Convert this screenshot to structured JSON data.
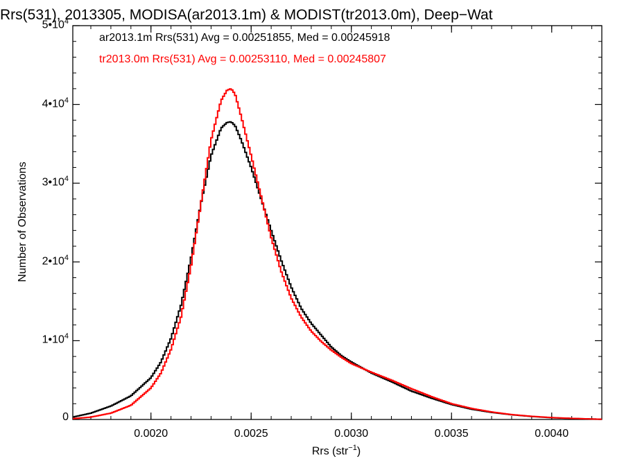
{
  "chart_data": {
    "type": "line",
    "title": "Rrs(531), 2013305, MODISA(ar2013.1m) & MODIST(tr2013.0m), Deep−Wat",
    "xlabel": "Rrs (str",
    "xlabel_sup": "−1",
    "xlabel_end": ")",
    "ylabel": "Number of Observations",
    "xlim": [
      0.00161,
      0.00425
    ],
    "ylim": [
      0,
      50000
    ],
    "x_ticks": [
      {
        "value": 0.002,
        "label": "0.0020"
      },
      {
        "value": 0.0025,
        "label": "0.0025"
      },
      {
        "value": 0.003,
        "label": "0.0030"
      },
      {
        "value": 0.0035,
        "label": "0.0035"
      },
      {
        "value": 0.004,
        "label": "0.0040"
      }
    ],
    "y_ticks": [
      {
        "value": 0,
        "label": "0"
      },
      {
        "value": 10000,
        "label": "1•10^4"
      },
      {
        "value": 20000,
        "label": "2•10^4"
      },
      {
        "value": 30000,
        "label": "3•10^4"
      },
      {
        "value": 40000,
        "label": "4•10^4"
      },
      {
        "value": 50000,
        "label": "5•10^4"
      }
    ],
    "legend": [
      {
        "text": "ar2013.1m Rrs(531) Avg = 0.00251855, Med = 0.00245918",
        "color": "#000000"
      },
      {
        "text": "tr2013.0m Rrs(531) Avg = 0.00253110, Med = 0.00245807",
        "color": "#ff0000"
      }
    ],
    "legend_position": "top-left",
    "series": [
      {
        "color": "#000000",
        "x": [
          0.00161,
          0.0017,
          0.0018,
          0.0019,
          0.002,
          0.00205,
          0.0021,
          0.00215,
          0.0022,
          0.00225,
          0.0023,
          0.00235,
          0.00238,
          0.0024,
          0.00242,
          0.00245,
          0.0025,
          0.00255,
          0.0026,
          0.00265,
          0.0027,
          0.00275,
          0.0028,
          0.00285,
          0.0029,
          0.00295,
          0.003,
          0.0031,
          0.0032,
          0.0033,
          0.0034,
          0.0035,
          0.0036,
          0.0037,
          0.0038,
          0.0039,
          0.004,
          0.0041,
          0.0042,
          0.00425
        ],
        "y": [
          300,
          800,
          1700,
          3000,
          5300,
          7300,
          10300,
          14500,
          20500,
          27500,
          33500,
          37000,
          37700,
          37800,
          37300,
          35500,
          32000,
          28000,
          24000,
          20200,
          16800,
          14100,
          12200,
          10700,
          9200,
          8100,
          7300,
          5900,
          4800,
          3600,
          2700,
          1900,
          1300,
          900,
          600,
          380,
          220,
          130,
          60,
          30
        ]
      },
      {
        "color": "#ff0000",
        "x": [
          0.00161,
          0.0017,
          0.0018,
          0.0019,
          0.002,
          0.00205,
          0.0021,
          0.00215,
          0.0022,
          0.00225,
          0.0023,
          0.00235,
          0.00238,
          0.0024,
          0.00242,
          0.00245,
          0.0025,
          0.00255,
          0.0026,
          0.00265,
          0.0027,
          0.00275,
          0.0028,
          0.00285,
          0.0029,
          0.00295,
          0.003,
          0.0031,
          0.0032,
          0.0033,
          0.0034,
          0.0035,
          0.0036,
          0.0037,
          0.0038,
          0.0039,
          0.004,
          0.0041,
          0.0042,
          0.00425
        ],
        "y": [
          100,
          300,
          800,
          1800,
          4000,
          5900,
          8900,
          13000,
          19500,
          27500,
          35500,
          40500,
          41800,
          42000,
          41300,
          38500,
          33500,
          28300,
          23100,
          18800,
          15400,
          13000,
          11200,
          9900,
          8800,
          7900,
          7100,
          6000,
          5000,
          3900,
          2900,
          2000,
          1400,
          950,
          620,
          400,
          240,
          140,
          60,
          30
        ]
      }
    ]
  }
}
